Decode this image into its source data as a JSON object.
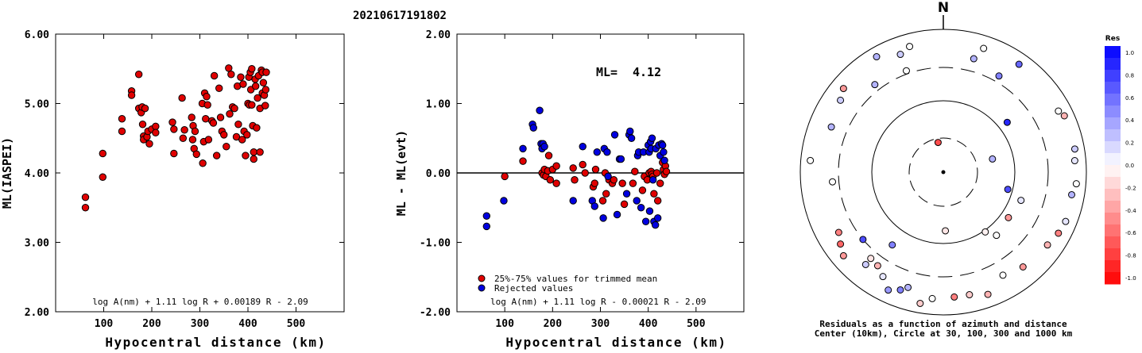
{
  "title": "20210617191802",
  "chart_data": [
    {
      "type": "scatter",
      "xlabel": "Hypocentral distance (km)",
      "ylabel": "ML(IASPEI)",
      "xlim": [
        0,
        600
      ],
      "ylim": [
        2.0,
        6.0
      ],
      "xticks": [
        "100",
        "200",
        "300",
        "400",
        "500"
      ],
      "yticks": [
        "2.00",
        "3.00",
        "4.00",
        "5.00",
        "6.00"
      ],
      "annotation": "log A(nm) + 1.11 log R + 0.00189 R - 2.09",
      "point_color": "#e00000",
      "points": [
        [
          62,
          3.65
        ],
        [
          62,
          3.5
        ],
        [
          98,
          4.28
        ],
        [
          98,
          3.94
        ],
        [
          138,
          4.78
        ],
        [
          138,
          4.6
        ],
        [
          158,
          5.18
        ],
        [
          158,
          5.12
        ],
        [
          173,
          5.42
        ],
        [
          173,
          4.93
        ],
        [
          178,
          4.87
        ],
        [
          180,
          4.95
        ],
        [
          181,
          4.7
        ],
        [
          183,
          4.53
        ],
        [
          183,
          4.48
        ],
        [
          186,
          4.93
        ],
        [
          190,
          4.52
        ],
        [
          192,
          4.6
        ],
        [
          195,
          4.42
        ],
        [
          200,
          4.63
        ],
        [
          208,
          4.67
        ],
        [
          208,
          4.58
        ],
        [
          243,
          4.73
        ],
        [
          246,
          4.63
        ],
        [
          246,
          4.28
        ],
        [
          263,
          5.08
        ],
        [
          265,
          4.5
        ],
        [
          268,
          4.62
        ],
        [
          283,
          4.8
        ],
        [
          285,
          4.48
        ],
        [
          286,
          4.68
        ],
        [
          288,
          4.35
        ],
        [
          290,
          4.6
        ],
        [
          293,
          4.27
        ],
        [
          305,
          5.0
        ],
        [
          306,
          4.14
        ],
        [
          308,
          4.45
        ],
        [
          310,
          5.15
        ],
        [
          312,
          4.78
        ],
        [
          314,
          5.1
        ],
        [
          316,
          4.98
        ],
        [
          318,
          4.48
        ],
        [
          325,
          4.75
        ],
        [
          328,
          4.72
        ],
        [
          330,
          5.4
        ],
        [
          335,
          4.25
        ],
        [
          340,
          5.22
        ],
        [
          343,
          4.8
        ],
        [
          346,
          4.6
        ],
        [
          350,
          4.55
        ],
        [
          355,
          4.38
        ],
        [
          360,
          5.51
        ],
        [
          362,
          4.85
        ],
        [
          365,
          5.42
        ],
        [
          368,
          4.95
        ],
        [
          372,
          4.93
        ],
        [
          376,
          4.52
        ],
        [
          378,
          5.25
        ],
        [
          380,
          4.7
        ],
        [
          385,
          5.38
        ],
        [
          388,
          4.48
        ],
        [
          390,
          5.28
        ],
        [
          392,
          4.6
        ],
        [
          395,
          4.25
        ],
        [
          398,
          4.55
        ],
        [
          400,
          5.0
        ],
        [
          402,
          5.38
        ],
        [
          403,
          4.98
        ],
        [
          405,
          5.45
        ],
        [
          406,
          5.2
        ],
        [
          408,
          5.5
        ],
        [
          408,
          4.98
        ],
        [
          410,
          4.68
        ],
        [
          412,
          4.3
        ],
        [
          412,
          4.2
        ],
        [
          415,
          5.35
        ],
        [
          416,
          5.25
        ],
        [
          418,
          4.65
        ],
        [
          420,
          5.08
        ],
        [
          422,
          5.4
        ],
        [
          425,
          4.93
        ],
        [
          425,
          4.3
        ],
        [
          428,
          5.48
        ],
        [
          430,
          5.45
        ],
        [
          430,
          5.15
        ],
        [
          432,
          5.3
        ],
        [
          434,
          5.12
        ],
        [
          436,
          4.97
        ],
        [
          437,
          5.2
        ],
        [
          438,
          5.45
        ]
      ]
    },
    {
      "type": "scatter",
      "xlabel": "Hypocentral distance (km)",
      "ylabel": "ML - ML(evt)",
      "xlim": [
        0,
        600
      ],
      "ylim": [
        -2.0,
        2.0
      ],
      "xticks": [
        "100",
        "200",
        "300",
        "400",
        "500"
      ],
      "yticks": [
        "-2.00",
        "-1.00",
        "0.00",
        "1.00",
        "2.00"
      ],
      "ml_label": "ML=",
      "ml_value": "4.12",
      "annotation": "log A(nm) + 1.11 log R - 0.00021 R - 2.09",
      "legend": [
        {
          "label": "25%-75% values for trimmed mean",
          "color": "#e00000"
        },
        {
          "label": "Rejected values",
          "color": "#0000e0"
        }
      ],
      "series": [
        {
          "name": "25%-75% values for trimmed mean",
          "color": "#e00000",
          "points": [
            [
              100,
              -0.05
            ],
            [
              138,
              0.17
            ],
            [
              178,
              0.0
            ],
            [
              181,
              -0.03
            ],
            [
              183,
              0.05
            ],
            [
              186,
              -0.05
            ],
            [
              190,
              0.03
            ],
            [
              192,
              0.25
            ],
            [
              195,
              -0.1
            ],
            [
              200,
              0.05
            ],
            [
              208,
              -0.15
            ],
            [
              208,
              0.1
            ],
            [
              243,
              0.07
            ],
            [
              246,
              -0.1
            ],
            [
              263,
              0.12
            ],
            [
              268,
              0.0
            ],
            [
              285,
              -0.2
            ],
            [
              288,
              -0.15
            ],
            [
              290,
              0.05
            ],
            [
              305,
              -0.4
            ],
            [
              310,
              0.0
            ],
            [
              312,
              -0.3
            ],
            [
              318,
              -0.1
            ],
            [
              325,
              -0.15
            ],
            [
              328,
              -0.1
            ],
            [
              346,
              -0.15
            ],
            [
              350,
              -0.45
            ],
            [
              368,
              -0.15
            ],
            [
              372,
              0.02
            ],
            [
              388,
              -0.25
            ],
            [
              392,
              -0.05
            ],
            [
              398,
              -0.1
            ],
            [
              402,
              0.0
            ],
            [
              406,
              0.02
            ],
            [
              408,
              -0.02
            ],
            [
              410,
              -0.05
            ],
            [
              412,
              -0.3
            ],
            [
              418,
              0.0
            ],
            [
              420,
              -0.4
            ],
            [
              425,
              -0.15
            ],
            [
              430,
              0.15
            ],
            [
              432,
              0.05
            ],
            [
              434,
              -0.02
            ],
            [
              436,
              0.1
            ],
            [
              438,
              0.02
            ]
          ]
        },
        {
          "name": "Rejected values",
          "color": "#0000e0",
          "points": [
            [
              62,
              -0.62
            ],
            [
              62,
              -0.77
            ],
            [
              98,
              -0.4
            ],
            [
              138,
              0.35
            ],
            [
              158,
              0.7
            ],
            [
              160,
              0.65
            ],
            [
              173,
              0.9
            ],
            [
              176,
              0.42
            ],
            [
              178,
              0.35
            ],
            [
              180,
              0.42
            ],
            [
              183,
              0.38
            ],
            [
              243,
              -0.4
            ],
            [
              263,
              0.38
            ],
            [
              283,
              -0.4
            ],
            [
              288,
              -0.48
            ],
            [
              293,
              0.3
            ],
            [
              306,
              -0.65
            ],
            [
              308,
              0.35
            ],
            [
              314,
              0.3
            ],
            [
              316,
              -0.05
            ],
            [
              330,
              0.55
            ],
            [
              335,
              -0.6
            ],
            [
              340,
              0.2
            ],
            [
              343,
              0.2
            ],
            [
              355,
              -0.3
            ],
            [
              360,
              0.55
            ],
            [
              362,
              0.6
            ],
            [
              365,
              0.5
            ],
            [
              376,
              -0.4
            ],
            [
              378,
              0.25
            ],
            [
              380,
              0.3
            ],
            [
              385,
              -0.5
            ],
            [
              390,
              0.3
            ],
            [
              395,
              -0.7
            ],
            [
              400,
              0.4
            ],
            [
              402,
              0.3
            ],
            [
              403,
              -0.55
            ],
            [
              405,
              0.45
            ],
            [
              406,
              0.35
            ],
            [
              408,
              0.5
            ],
            [
              410,
              -0.1
            ],
            [
              412,
              -0.7
            ],
            [
              415,
              -0.75
            ],
            [
              416,
              0.35
            ],
            [
              420,
              -0.65
            ],
            [
              422,
              0.4
            ],
            [
              425,
              0.25
            ],
            [
              428,
              0.42
            ],
            [
              430,
              0.4
            ],
            [
              432,
              0.3
            ],
            [
              434,
              0.18
            ]
          ]
        }
      ]
    },
    {
      "type": "scatter",
      "subtype": "polar",
      "north_label": "N",
      "caption_line1": "Residuals as a function of azimuth and distance",
      "caption_line2": "Center (10km), Circle at 30, 100, 300 and 1000 km",
      "rings_km": [
        10,
        30,
        100,
        300,
        1000
      ],
      "colorbar_title": "Res",
      "colorbar_ticks": [
        "1.0",
        "0.8",
        "0.6",
        "0.4",
        "0.2",
        "0.0",
        "-0.2",
        "-0.4",
        "-0.6",
        "-0.8",
        "-1.0"
      ],
      "points": [
        {
          "az": 75,
          "dist": 160,
          "res": 0.3
        },
        {
          "az": 178,
          "dist": 185,
          "res": -0.1
        },
        {
          "az": 145,
          "dist": 230,
          "res": -0.05
        },
        {
          "az": 140,
          "dist": 260,
          "res": 0.0
        },
        {
          "az": 125,
          "dist": 250,
          "res": -0.4
        },
        {
          "az": 110,
          "dist": 260,
          "res": 0.1
        },
        {
          "az": 105,
          "dist": 210,
          "res": 0.7
        },
        {
          "az": 52,
          "dist": 255,
          "res": 0.85
        },
        {
          "az": 30,
          "dist": 350,
          "res": 0.5
        },
        {
          "az": 18,
          "dist": 410,
          "res": 0.0
        },
        {
          "az": 15,
          "dist": 370,
          "res": 0.3
        },
        {
          "az": -15,
          "dist": 410,
          "res": 0.0
        },
        {
          "az": -20,
          "dist": 395,
          "res": 0.2
        },
        {
          "az": -30,
          "dist": 420,
          "res": 0.3
        },
        {
          "az": -38,
          "dist": 350,
          "res": 0.3
        },
        {
          "az": -50,
          "dist": 410,
          "res": -0.4
        },
        {
          "az": -55,
          "dist": 395,
          "res": 0.2
        },
        {
          "az": -68,
          "dist": 380,
          "res": 0.3
        },
        {
          "az": -85,
          "dist": 420,
          "res": 0.0
        },
        {
          "az": -95,
          "dist": 350,
          "res": 0.0
        },
        {
          "az": -120,
          "dist": 380,
          "res": -0.5
        },
        {
          "az": -125,
          "dist": 395,
          "res": -0.6
        },
        {
          "az": -130,
          "dist": 410,
          "res": -0.4
        },
        {
          "az": -140,
          "dist": 380,
          "res": 0.2
        },
        {
          "az": -145,
          "dist": 360,
          "res": -0.3
        },
        {
          "az": -150,
          "dist": 380,
          "res": 0.1
        },
        {
          "az": -155,
          "dist": 410,
          "res": 0.4
        },
        {
          "az": -160,
          "dist": 395,
          "res": 0.5
        },
        {
          "az": -163,
          "dist": 380,
          "res": 0.3
        },
        {
          "az": -170,
          "dist": 420,
          "res": -0.2
        },
        {
          "az": -175,
          "dist": 400,
          "res": 0.0
        },
        {
          "az": 175,
          "dist": 395,
          "res": -0.5
        },
        {
          "az": 168,
          "dist": 395,
          "res": -0.2
        },
        {
          "az": 160,
          "dist": 410,
          "res": -0.3
        },
        {
          "az": 150,
          "dist": 375,
          "res": 0.0
        },
        {
          "az": 140,
          "dist": 390,
          "res": -0.4
        },
        {
          "az": 125,
          "dist": 400,
          "res": -0.3
        },
        {
          "az": 118,
          "dist": 410,
          "res": -0.5
        },
        {
          "az": 112,
          "dist": 415,
          "res": 0.1
        },
        {
          "az": 100,
          "dist": 410,
          "res": 0.3
        },
        {
          "az": 95,
          "dist": 420,
          "res": 0.0
        },
        {
          "az": 85,
          "dist": 415,
          "res": 0.1
        },
        {
          "az": 80,
          "dist": 420,
          "res": 0.2
        },
        {
          "az": 65,
          "dist": 420,
          "res": -0.3
        },
        {
          "az": 62,
          "dist": 410,
          "res": 0.0
        },
        {
          "az": 35,
          "dist": 415,
          "res": 0.6
        },
        {
          "az": -130,
          "dist": 330,
          "res": 0.7
        },
        {
          "az": -145,
          "dist": 280,
          "res": 0.5
        },
        {
          "az": -10,
          "dist": 95,
          "res": -0.7
        },
        {
          "az": -20,
          "dist": 340,
          "res": 0.0
        },
        {
          "az": -140,
          "dist": 355,
          "res": -0.1
        }
      ]
    }
  ]
}
